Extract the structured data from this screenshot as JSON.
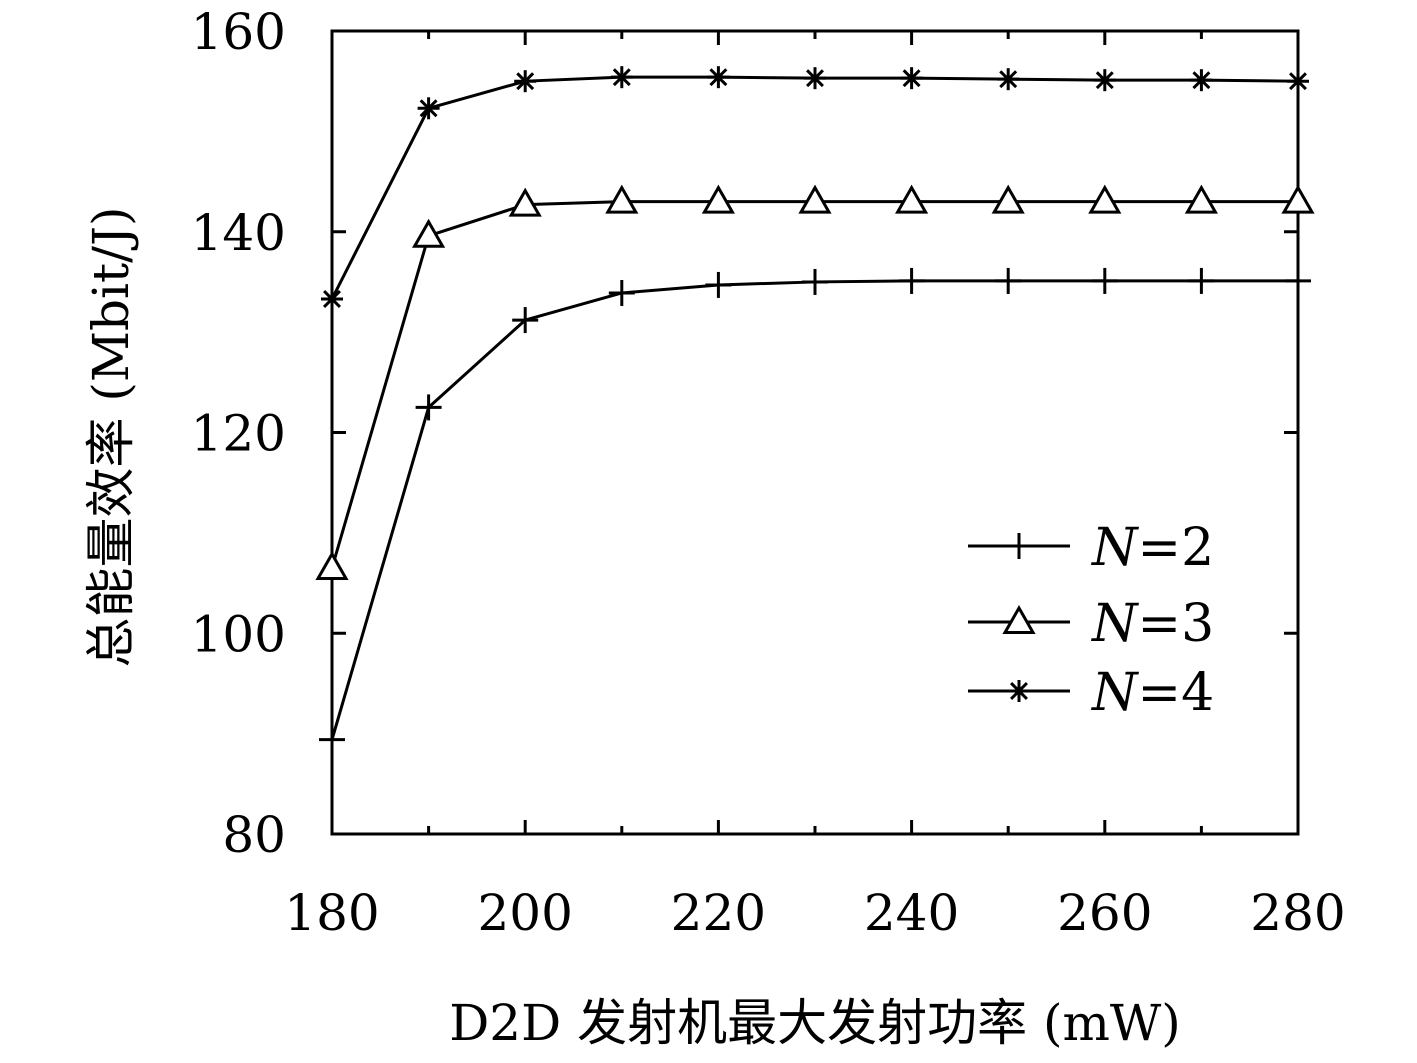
{
  "chart_data": {
    "type": "line",
    "title": "",
    "xlabel": "D2D 发射机最大发射功率 (mW)",
    "ylabel": "总能量效率 (Mbit/J)",
    "xlim": [
      180,
      280
    ],
    "ylim": [
      80,
      160
    ],
    "xticks": [
      "180",
      "200",
      "220",
      "240",
      "260",
      "280"
    ],
    "yticks": [
      "80",
      "100",
      "120",
      "140",
      "160"
    ],
    "grid": false,
    "legend_position": "center-right",
    "x": [
      180,
      190,
      200,
      210,
      220,
      230,
      240,
      250,
      260,
      270,
      280
    ],
    "series": [
      {
        "name": "N=2",
        "name_var": "N",
        "name_val": "=2",
        "marker": "plus",
        "values": [
          89.4,
          122.5,
          131.2,
          133.9,
          134.7,
          135.0,
          135.1,
          135.1,
          135.1,
          135.1,
          135.1
        ]
      },
      {
        "name": "N=3",
        "name_var": "N",
        "name_val": "=3",
        "marker": "triangle",
        "values": [
          106.5,
          139.6,
          142.7,
          143.0,
          143.0,
          143.0,
          143.0,
          143.0,
          143.0,
          143.0,
          143.0
        ]
      },
      {
        "name": "N=4",
        "name_var": "N",
        "name_val": "=4",
        "marker": "star",
        "values": [
          133.3,
          152.3,
          155.0,
          155.4,
          155.4,
          155.3,
          155.3,
          155.2,
          155.1,
          155.1,
          155.0
        ]
      }
    ]
  }
}
